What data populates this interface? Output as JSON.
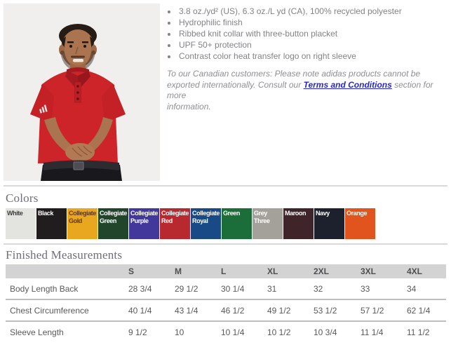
{
  "features": {
    "bullets": [
      "3.8 oz./yd² (US), 6.3 oz./L yd (CA), 100% recycled polyester",
      "Hydrophilic finish",
      "Ribbed knit collar with three-button placket",
      "UPF 50+ protection",
      "Contrast color heat transfer logo on right sleeve"
    ],
    "note": {
      "line1": "To our Canadian customers: Please note adidas products cannot be",
      "line2_before_link": "exported internationally. Consult our ",
      "link_text": "Terms and Conditions",
      "line2_after_link": " section for more",
      "line3": "information."
    }
  },
  "colors_section": {
    "title": "Colors",
    "swatches": [
      {
        "name": "White",
        "bg": "#e3e3e0",
        "text_color": "#3c3c3c"
      },
      {
        "name": "Black",
        "bg": "#211d1e",
        "text_color": "#ffffff"
      },
      {
        "name": "Collegiate Gold",
        "bg": "#e9a61f",
        "text_color": "#5f370e"
      },
      {
        "name": "Collegiate Green",
        "bg": "#20452a",
        "text_color": "#ffffff"
      },
      {
        "name": "Collegiate Purple",
        "bg": "#42379b",
        "text_color": "#ffffff"
      },
      {
        "name": "Collegiate Red",
        "bg": "#b8292f",
        "text_color": "#ffffff"
      },
      {
        "name": "Collegiate Royal",
        "bg": "#194a85",
        "text_color": "#ffffff"
      },
      {
        "name": "Green",
        "bg": "#1b6e39",
        "text_color": "#ffffff"
      },
      {
        "name": "Grey Three",
        "bg": "#a4a19b",
        "text_color": "#ffffff"
      },
      {
        "name": "Maroon",
        "bg": "#3f242a",
        "text_color": "#ffffff"
      },
      {
        "name": "Navy",
        "bg": "#1d212e",
        "text_color": "#ffffff"
      },
      {
        "name": "Orange",
        "bg": "#e2541d",
        "text_color": "#ffffff"
      }
    ]
  },
  "measurements": {
    "title": "Finished Measurements",
    "columns": [
      "",
      "S",
      "M",
      "L",
      "XL",
      "2XL",
      "3XL",
      "4XL"
    ],
    "rows": [
      {
        "label": "Body Length Back",
        "values": [
          "28 3/4",
          "29 1/2",
          "30 1/4",
          "31",
          "32",
          "33",
          "34"
        ]
      },
      {
        "label": "Chest Circumference",
        "values": [
          "40 1/4",
          "43 1/4",
          "46 1/2",
          "49 1/2",
          "53 1/2",
          "57 1/2",
          "62 1/4"
        ]
      },
      {
        "label": "Sleeve Length",
        "values": [
          "9 1/2",
          "10",
          "10 1/4",
          "10 1/2",
          "10 3/4",
          "11 1/4",
          "11 1/2"
        ]
      }
    ]
  }
}
